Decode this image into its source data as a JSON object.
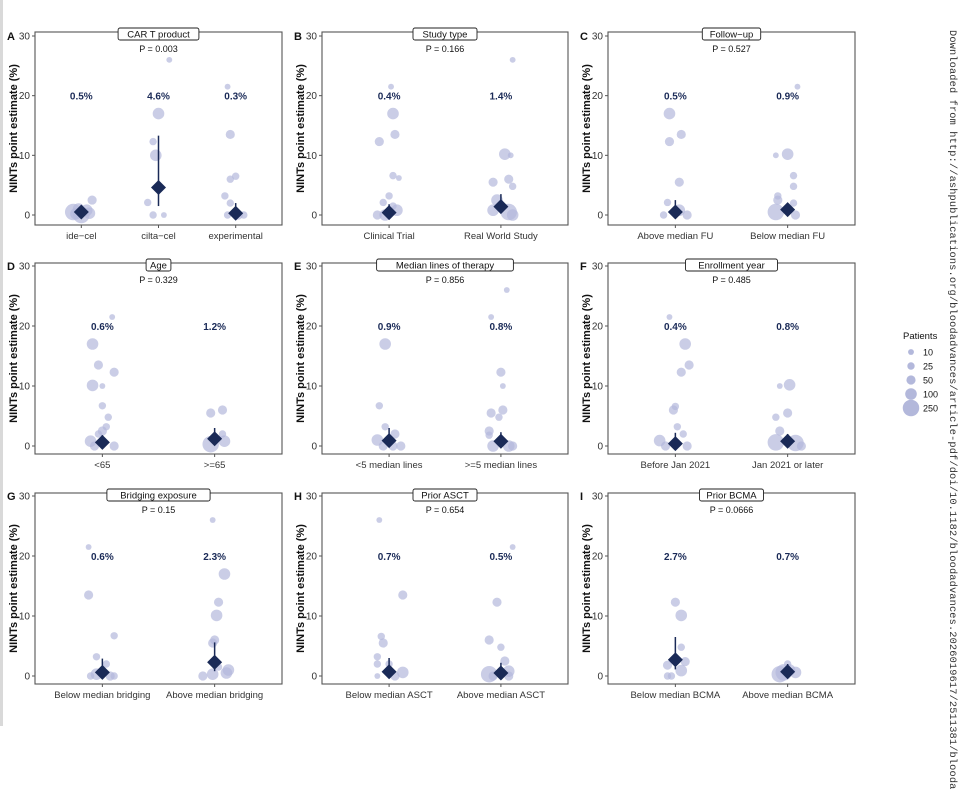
{
  "watermark": "Downloaded from http://ashpublications.org/bloodadvances/article-pdf/doi/10.1182/bloodadvances.2026019617/2511381/blooda",
  "legend": {
    "title": "Patients",
    "entries": [
      "10",
      "25",
      "50",
      "100",
      "250"
    ],
    "sizes": [
      10,
      25,
      50,
      100,
      250
    ]
  },
  "colors": {
    "points": "#b3b8db",
    "estimate": "#1a2a57",
    "frame": "#555555",
    "text": "#333333",
    "pct": "#1a2a57"
  },
  "chart_data": [
    {
      "panel": "A",
      "type": "scatter",
      "title": "CAR T product",
      "pvalue": "P = 0.003",
      "ylabel": "NINTs point estimate (%)",
      "ylim": [
        0,
        30
      ],
      "yticks": [
        0,
        10,
        20,
        30
      ],
      "categories": [
        "ide−cel",
        "cilta−cel",
        "experimental"
      ],
      "estimates": [
        0.5,
        4.6,
        0.3
      ],
      "labels": [
        "0.5%",
        "4.6%",
        "0.3%"
      ],
      "ci": [
        [
          0,
          1.2
        ],
        [
          1.5,
          13.3
        ],
        [
          0,
          2.0
        ]
      ],
      "points": [
        [
          [
            0,
            0,
            250
          ],
          [
            -0.3,
            0.5,
            250
          ],
          [
            0.3,
            0.3,
            100
          ],
          [
            -0.1,
            1.0,
            100
          ],
          [
            0.4,
            2.5,
            50
          ],
          [
            0.2,
            0.8,
            100
          ],
          [
            -0.2,
            0.2,
            100
          ]
        ],
        [
          [
            -0.2,
            12.3,
            25
          ],
          [
            -0.1,
            10.0,
            100
          ],
          [
            0,
            17,
            100
          ],
          [
            -0.4,
            2.1,
            25
          ],
          [
            -0.2,
            0,
            25
          ],
          [
            0.2,
            0,
            10
          ],
          [
            0.4,
            26,
            10
          ]
        ],
        [
          [
            -0.2,
            13.5,
            50
          ],
          [
            -0.3,
            21.5,
            10
          ],
          [
            -0.2,
            6.0,
            25
          ],
          [
            0,
            6.5,
            25
          ],
          [
            -0.4,
            3.2,
            25
          ],
          [
            -0.2,
            2.0,
            25
          ],
          [
            0.1,
            0,
            50
          ],
          [
            0.3,
            0,
            25
          ],
          [
            -0.3,
            0,
            25
          ]
        ]
      ]
    },
    {
      "panel": "B",
      "type": "scatter",
      "title": "Study type",
      "pvalue": "P = 0.166",
      "ylabel": "NINTs point estimate (%)",
      "ylim": [
        0,
        30
      ],
      "yticks": [
        0,
        10,
        20,
        30
      ],
      "categories": [
        "Clinical Trial",
        "Real World Study"
      ],
      "estimates": [
        0.4,
        1.4
      ],
      "labels": [
        "0.4%",
        "1.4%"
      ],
      "ci": [
        [
          0,
          1.8
        ],
        [
          0.4,
          3.5
        ]
      ],
      "points": [
        [
          [
            -0.25,
            12.3,
            50
          ],
          [
            0.1,
            17,
            100
          ],
          [
            0.15,
            13.5,
            50
          ],
          [
            0.1,
            6.6,
            25
          ],
          [
            0.25,
            6.2,
            10
          ],
          [
            0.05,
            21.5,
            10
          ],
          [
            0,
            3.2,
            25
          ],
          [
            -0.15,
            2.1,
            25
          ],
          [
            -0.3,
            0,
            50
          ],
          [
            0.2,
            0.8,
            100
          ],
          [
            -0.1,
            0,
            100
          ],
          [
            0.1,
            1.5,
            25
          ]
        ],
        [
          [
            0.1,
            10.2,
            100
          ],
          [
            0.25,
            10.0,
            10
          ],
          [
            -0.2,
            5.5,
            50
          ],
          [
            0.2,
            6.0,
            50
          ],
          [
            0.3,
            4.8,
            25
          ],
          [
            0.3,
            26,
            10
          ],
          [
            -0.1,
            2.5,
            100
          ],
          [
            0.2,
            0.5,
            250
          ],
          [
            -0.2,
            0.8,
            100
          ],
          [
            0.3,
            0,
            100
          ]
        ]
      ]
    },
    {
      "panel": "C",
      "type": "scatter",
      "title": "Follow−up",
      "pvalue": "P = 0.527",
      "ylabel": "NINTs point estimate (%)",
      "ylim": [
        0,
        30
      ],
      "yticks": [
        0,
        10,
        20,
        30
      ],
      "categories": [
        "Above median FU",
        "Below median FU"
      ],
      "estimates": [
        0.5,
        0.9
      ],
      "labels": [
        "0.5%",
        "0.9%"
      ],
      "ci": [
        [
          0,
          2.5
        ],
        [
          0.2,
          2.0
        ]
      ],
      "points": [
        [
          [
            -0.15,
            17,
            100
          ],
          [
            -0.15,
            12.3,
            50
          ],
          [
            0.15,
            13.5,
            50
          ],
          [
            0.1,
            5.5,
            50
          ],
          [
            -0.2,
            2.1,
            25
          ],
          [
            0.3,
            0,
            50
          ],
          [
            -0.3,
            0,
            25
          ],
          [
            0.1,
            0.8,
            100
          ]
        ],
        [
          [
            0,
            10.2,
            100
          ],
          [
            -0.3,
            10.0,
            10
          ],
          [
            0.15,
            6.6,
            25
          ],
          [
            0.15,
            4.8,
            25
          ],
          [
            0.25,
            21.5,
            10
          ],
          [
            -0.25,
            3.2,
            25
          ],
          [
            -0.25,
            2.5,
            50
          ],
          [
            -0.3,
            0.5,
            250
          ],
          [
            0.15,
            2.0,
            25
          ],
          [
            0.2,
            0,
            50
          ]
        ]
      ]
    },
    {
      "panel": "D",
      "type": "scatter",
      "title": "Age",
      "pvalue": "P = 0.329",
      "ylabel": "NINTs point estimate (%)",
      "ylim": [
        0,
        30
      ],
      "yticks": [
        0,
        10,
        20,
        30
      ],
      "categories": [
        "<65",
        ">=65"
      ],
      "estimates": [
        0.6,
        1.2
      ],
      "labels": [
        "0.6%",
        "1.2%"
      ],
      "ci": [
        [
          0,
          1.8
        ],
        [
          0.2,
          3.0
        ]
      ],
      "points": [
        [
          [
            -0.25,
            17,
            100
          ],
          [
            -0.1,
            13.5,
            50
          ],
          [
            0.3,
            12.3,
            50
          ],
          [
            -0.25,
            10.1,
            100
          ],
          [
            0,
            10.0,
            10
          ],
          [
            0,
            6.7,
            25
          ],
          [
            0.15,
            4.8,
            25
          ],
          [
            0.1,
            3.2,
            25
          ],
          [
            0,
            2.5,
            50
          ],
          [
            0.25,
            21.5,
            10
          ],
          [
            -0.3,
            0.8,
            100
          ],
          [
            -0.1,
            2.0,
            25
          ],
          [
            0.3,
            0,
            50
          ],
          [
            -0.2,
            0,
            50
          ]
        ],
        [
          [
            -0.1,
            5.5,
            50
          ],
          [
            0.2,
            6.0,
            50
          ],
          [
            0.2,
            2.0,
            25
          ],
          [
            -0.1,
            0.3,
            250
          ],
          [
            0.25,
            0.8,
            100
          ]
        ]
      ]
    },
    {
      "panel": "E",
      "type": "scatter",
      "title": "Median lines of therapy",
      "pvalue": "P = 0.856",
      "ylabel": "NINTs point estimate (%)",
      "ylim": [
        0,
        30
      ],
      "yticks": [
        0,
        10,
        20,
        30
      ],
      "categories": [
        "<5 median lines",
        ">=5 median lines"
      ],
      "estimates": [
        0.9,
        0.8
      ],
      "labels": [
        "0.9%",
        "0.8%"
      ],
      "ci": [
        [
          0,
          3.0
        ],
        [
          0,
          2.3
        ]
      ],
      "points": [
        [
          [
            -0.1,
            17,
            100
          ],
          [
            -0.25,
            6.7,
            25
          ],
          [
            -0.1,
            3.2,
            25
          ],
          [
            0.15,
            2.0,
            50
          ],
          [
            -0.3,
            1.0,
            100
          ],
          [
            0.3,
            0,
            50
          ],
          [
            -0.15,
            0,
            50
          ],
          [
            0.1,
            0,
            50
          ]
        ],
        [
          [
            0,
            12.3,
            50
          ],
          [
            0.05,
            10.0,
            10
          ],
          [
            -0.25,
            5.5,
            50
          ],
          [
            0.05,
            6.0,
            50
          ],
          [
            -0.05,
            4.8,
            25
          ],
          [
            -0.25,
            21.5,
            10
          ],
          [
            0.15,
            26,
            10
          ],
          [
            -0.3,
            2.5,
            50
          ],
          [
            -0.3,
            1.8,
            25
          ],
          [
            0.2,
            0,
            100
          ],
          [
            -0.2,
            0,
            100
          ],
          [
            0.3,
            0,
            50
          ]
        ]
      ]
    },
    {
      "panel": "F",
      "type": "scatter",
      "title": "Enrollment year",
      "pvalue": "P = 0.485",
      "ylabel": "NINTs point estimate (%)",
      "ylim": [
        0,
        30
      ],
      "yticks": [
        0,
        10,
        20,
        30
      ],
      "categories": [
        "Before Jan 2021",
        "Jan 2021 or later"
      ],
      "estimates": [
        0.4,
        0.8
      ],
      "labels": [
        "0.4%",
        "0.8%"
      ],
      "ci": [
        [
          0,
          2.2
        ],
        [
          0.1,
          2.0
        ]
      ],
      "points": [
        [
          [
            0.25,
            17,
            100
          ],
          [
            0.35,
            13.5,
            50
          ],
          [
            0.15,
            12.3,
            50
          ],
          [
            -0.05,
            6.0,
            50
          ],
          [
            0,
            6.6,
            25
          ],
          [
            0.05,
            3.2,
            25
          ],
          [
            0.2,
            2.0,
            25
          ],
          [
            -0.15,
            21.5,
            10
          ],
          [
            -0.4,
            0.9,
            100
          ],
          [
            0.3,
            0,
            50
          ],
          [
            -0.25,
            0,
            50
          ]
        ],
        [
          [
            0.05,
            10.2,
            100
          ],
          [
            -0.2,
            10.0,
            10
          ],
          [
            0,
            5.5,
            50
          ],
          [
            -0.3,
            4.8,
            25
          ],
          [
            -0.2,
            2.5,
            50
          ],
          [
            -0.3,
            0.6,
            250
          ],
          [
            0.2,
            0.5,
            250
          ],
          [
            0.35,
            0,
            50
          ]
        ]
      ]
    },
    {
      "panel": "G",
      "type": "scatter",
      "title": "Bridging exposure",
      "pvalue": "P = 0.15",
      "ylabel": "NINTs point estimate (%)",
      "ylim": [
        0,
        30
      ],
      "yticks": [
        0,
        10,
        20,
        30
      ],
      "categories": [
        "Below median bridging",
        "Above median bridging"
      ],
      "estimates": [
        0.6,
        2.3
      ],
      "labels": [
        "0.6%",
        "2.3%"
      ],
      "ci": [
        [
          0,
          2.9
        ],
        [
          0.8,
          5.6
        ]
      ],
      "points": [
        [
          [
            -0.35,
            21.5,
            10
          ],
          [
            -0.35,
            13.5,
            50
          ],
          [
            0.3,
            6.7,
            25
          ],
          [
            -0.15,
            3.2,
            25
          ],
          [
            0.1,
            2.0,
            25
          ],
          [
            -0.3,
            0,
            25
          ],
          [
            0.2,
            0,
            50
          ],
          [
            0.3,
            0,
            25
          ],
          [
            -0.15,
            0.3,
            100
          ]
        ],
        [
          [
            -0.05,
            26,
            10
          ],
          [
            0.25,
            17,
            100
          ],
          [
            0.1,
            12.3,
            50
          ],
          [
            0.05,
            10.1,
            100
          ],
          [
            0,
            6.0,
            50
          ],
          [
            -0.05,
            5.5,
            50
          ],
          [
            -0.3,
            0,
            50
          ],
          [
            0.35,
            1.0,
            100
          ],
          [
            0.3,
            0.5,
            100
          ],
          [
            -0.05,
            0.3,
            100
          ],
          [
            0.1,
            1.5,
            25
          ]
        ]
      ]
    },
    {
      "panel": "H",
      "type": "scatter",
      "title": "Prior ASCT",
      "pvalue": "P = 0.654",
      "ylabel": "NINTs point estimate (%)",
      "ylim": [
        0,
        30
      ],
      "yticks": [
        0,
        10,
        20,
        30
      ],
      "categories": [
        "Below median ASCT",
        "Above median ASCT"
      ],
      "estimates": [
        0.7,
        0.5
      ],
      "labels": [
        "0.7%",
        "0.5%"
      ],
      "ci": [
        [
          0,
          3.0
        ],
        [
          0,
          2.2
        ]
      ],
      "points": [
        [
          [
            -0.25,
            26,
            10
          ],
          [
            0.35,
            13.5,
            50
          ],
          [
            -0.2,
            6.6,
            25
          ],
          [
            -0.15,
            5.5,
            50
          ],
          [
            -0.3,
            3.2,
            25
          ],
          [
            -0.3,
            2.0,
            25
          ],
          [
            0,
            2.0,
            25
          ],
          [
            0.35,
            0.6,
            100
          ],
          [
            -0.3,
            0,
            10
          ],
          [
            0.15,
            0,
            50
          ]
        ],
        [
          [
            -0.1,
            12.3,
            50
          ],
          [
            0.3,
            21.5,
            10
          ],
          [
            -0.3,
            6.0,
            50
          ],
          [
            0,
            4.8,
            25
          ],
          [
            0.1,
            2.5,
            50
          ],
          [
            -0.3,
            0.3,
            250
          ],
          [
            0.2,
            0.8,
            100
          ],
          [
            -0.2,
            0,
            50
          ],
          [
            0.2,
            0,
            50
          ]
        ]
      ]
    },
    {
      "panel": "I",
      "type": "scatter",
      "title": "Prior BCMA",
      "pvalue": "P = 0.0666",
      "ylabel": "NINTs point estimate (%)",
      "ylim": [
        0,
        30
      ],
      "yticks": [
        0,
        10,
        20,
        30
      ],
      "categories": [
        "Below median BCMA",
        "Above median BCMA"
      ],
      "estimates": [
        2.7,
        0.7
      ],
      "labels": [
        "2.7%",
        "0.7%"
      ],
      "ci": [
        [
          1.1,
          6.5
        ],
        [
          0.1,
          2.0
        ]
      ],
      "points": [
        [
          [
            0,
            12.3,
            50
          ],
          [
            0.15,
            10.1,
            100
          ],
          [
            0.15,
            4.8,
            25
          ],
          [
            0.25,
            2.4,
            50
          ],
          [
            -0.2,
            1.8,
            50
          ],
          [
            0.15,
            0.9,
            100
          ],
          [
            -0.2,
            0,
            25
          ],
          [
            -0.1,
            0,
            25
          ]
        ],
        [
          [
            -0.2,
            0.3,
            250
          ],
          [
            0.05,
            1.0,
            100
          ],
          [
            0.2,
            0.6,
            100
          ],
          [
            0,
            2.0,
            25
          ],
          [
            -0.1,
            0.6,
            250
          ]
        ]
      ]
    }
  ]
}
